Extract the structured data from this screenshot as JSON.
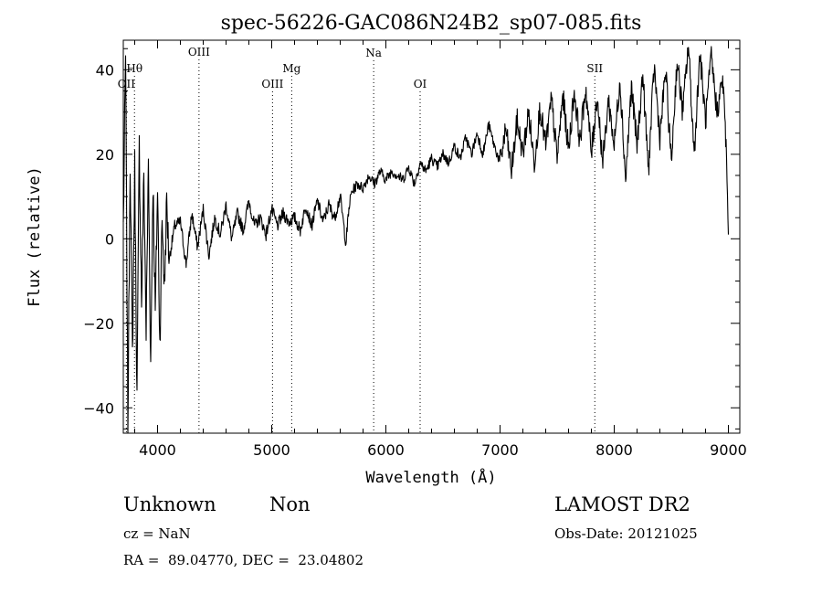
{
  "chart_data": {
    "type": "line",
    "title": "spec-56226-GAC086N24B2_sp07-085.fits",
    "xlabel": "Wavelength (Å)",
    "ylabel": "Flux (relative)",
    "xlim": [
      3700,
      9100
    ],
    "ylim": [
      -46,
      47
    ],
    "x_ticks": [
      4000,
      5000,
      6000,
      7000,
      8000,
      9000
    ],
    "y_ticks": [
      -40,
      -20,
      0,
      20,
      40
    ],
    "grid": false,
    "line_color": "#000000",
    "series": [
      {
        "x": [
          3700,
          3720,
          3740,
          3760,
          3780,
          3800,
          3820,
          3840,
          3860,
          3880,
          3900,
          3920,
          3940,
          3960,
          3980,
          4000,
          4020,
          4040,
          4060,
          4080,
          4100,
          4150,
          4200,
          4250,
          4300,
          4350,
          4400,
          4450,
          4500,
          4550,
          4600,
          4650,
          4700,
          4750,
          4800,
          4850,
          4900,
          4950,
          5000,
          5050,
          5100,
          5150,
          5200,
          5250,
          5300,
          5350,
          5400,
          5450,
          5500,
          5550,
          5600,
          5650,
          5680,
          5700,
          5750,
          5800,
          5850,
          5900,
          5950,
          6000,
          6050,
          6100,
          6150,
          6200,
          6250,
          6300,
          6350,
          6400,
          6450,
          6500,
          6550,
          6600,
          6650,
          6700,
          6750,
          6800,
          6850,
          6900,
          6950,
          7000,
          7050,
          7100,
          7150,
          7200,
          7250,
          7300,
          7350,
          7400,
          7450,
          7500,
          7550,
          7600,
          7650,
          7700,
          7750,
          7800,
          7850,
          7900,
          7950,
          8000,
          8050,
          8100,
          8150,
          8200,
          8250,
          8300,
          8350,
          8400,
          8450,
          8500,
          8550,
          8600,
          8650,
          8700,
          8750,
          8800,
          8850,
          8900,
          8950,
          8980,
          9000
        ],
        "y": [
          3,
          43,
          -45,
          20,
          -28,
          17,
          -38,
          22,
          -15,
          15,
          -22,
          18,
          -30,
          14,
          -18,
          12,
          -25,
          5,
          -12,
          9,
          -5,
          3,
          4,
          -6,
          6,
          -2,
          7,
          -4,
          5,
          1,
          8,
          0,
          6,
          2,
          9,
          3,
          5,
          1,
          7,
          3,
          6,
          4,
          5,
          2,
          8,
          3,
          9,
          4,
          8,
          5,
          10,
          -1,
          8,
          11,
          13,
          12,
          15,
          13,
          16,
          14,
          16,
          15,
          14,
          17,
          13,
          18,
          16,
          19,
          17,
          20,
          18,
          22,
          19,
          24,
          20,
          25,
          20,
          27,
          22,
          18,
          26,
          16,
          28,
          20,
          30,
          18,
          31,
          22,
          33,
          19,
          34,
          21,
          35,
          23,
          36,
          20,
          34,
          18,
          33,
          22,
          38,
          14,
          36,
          22,
          39,
          16,
          41,
          24,
          40,
          18,
          42,
          30,
          46,
          20,
          44,
          28,
          43,
          30,
          38,
          22,
          1
        ]
      }
    ],
    "annotations": [
      {
        "label": "OII",
        "x": 3727
      },
      {
        "label": "Hθ",
        "x": 3798
      },
      {
        "label": "OIII",
        "x": 4363
      },
      {
        "label": "OIII",
        "x": 5007
      },
      {
        "label": "Mg",
        "x": 5175
      },
      {
        "label": "Na",
        "x": 5893
      },
      {
        "label": "OI",
        "x": 6300
      },
      {
        "label": "SII",
        "x": 7830
      }
    ]
  },
  "info": {
    "class": "Unknown",
    "subclass": "Non",
    "survey": "LAMOST DR2",
    "cz": "cz = NaN",
    "obs_date": "Obs-Date: 20121025",
    "coords": "RA =  89.04770, DEC =  23.04802"
  }
}
